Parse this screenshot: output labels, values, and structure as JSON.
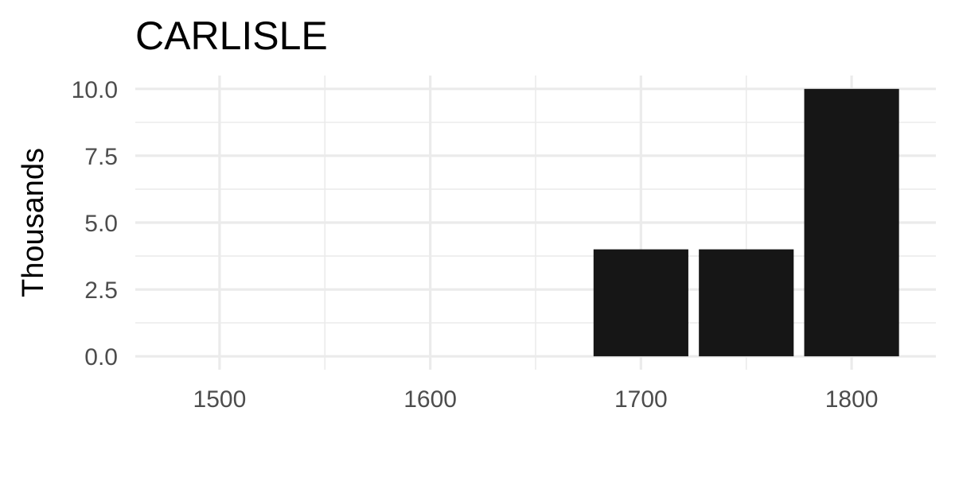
{
  "chart_data": {
    "type": "bar",
    "title": "CARLISLE",
    "xlabel": "",
    "ylabel": "Thousands",
    "x": [
      1700,
      1750,
      1800
    ],
    "values": [
      4,
      4,
      10
    ],
    "xlim": [
      1460,
      1840
    ],
    "ylim": [
      -0.5,
      10.5
    ],
    "x_ticks": [
      1500,
      1600,
      1700,
      1800
    ],
    "x_tick_labels": [
      "1500",
      "1600",
      "1700",
      "1800"
    ],
    "y_ticks": [
      0,
      2.5,
      5,
      7.5,
      10
    ],
    "y_tick_labels": [
      "0.0",
      "2.5",
      "5.0",
      "7.5",
      "10.0"
    ],
    "bar_color": "#161616",
    "grid": true,
    "legend": "none"
  }
}
